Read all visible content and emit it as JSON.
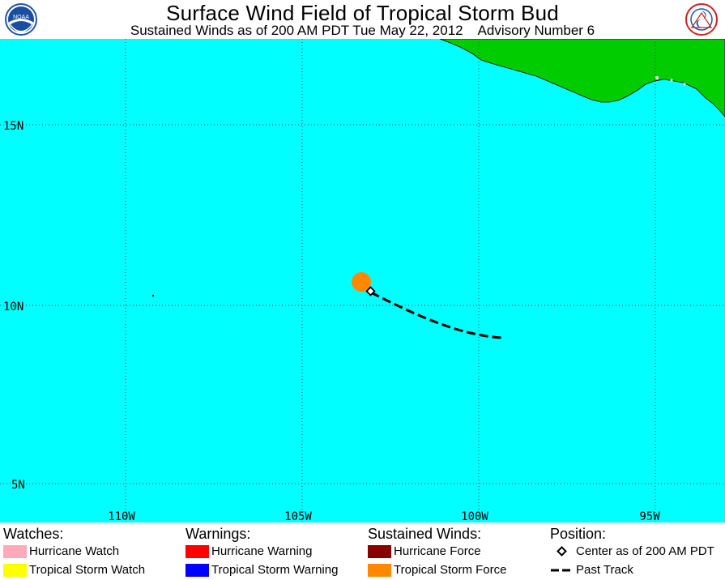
{
  "header": {
    "title": "Surface Wind Field of Tropical Storm Bud",
    "subtitle": "Sustained Winds as of 200 AM PDT Tue May 22, 2012    Advisory Number 6",
    "left_logo_text": "NOAA",
    "right_logo_text": "NATIONAL WEATHER SERVICE"
  },
  "map": {
    "ocean_color": "#00ffff",
    "land_color": "#00cc00",
    "grid_color": "#000000",
    "lat_labels": [
      "15N",
      "10N",
      "5N"
    ],
    "lon_labels": [
      "110W",
      "105W",
      "100W",
      "95W"
    ],
    "icons": [
      "storm-center-icon",
      "tropical-storm-force-area-icon",
      "past-track-icon"
    ]
  },
  "legend": {
    "watches": {
      "heading": "Watches:",
      "items": [
        {
          "label": "Hurricane Watch",
          "color": "#ffaabb"
        },
        {
          "label": "Tropical Storm Watch",
          "color": "#ffff00"
        }
      ]
    },
    "warnings": {
      "heading": "Warnings:",
      "items": [
        {
          "label": "Hurricane Warning",
          "color": "#ff0000"
        },
        {
          "label": "Tropical Storm Warning",
          "color": "#0000ff"
        }
      ]
    },
    "winds": {
      "heading": "Sustained Winds:",
      "items": [
        {
          "label": "Hurricane Force",
          "color": "#880000"
        },
        {
          "label": "Tropical Storm Force",
          "color": "#ff8800"
        }
      ]
    },
    "position": {
      "heading": "Position:",
      "items": [
        {
          "label": "Center as of 200 AM PDT",
          "icon": "diamond-icon"
        },
        {
          "label": "Past Track",
          "icon": "dashed-line-icon"
        }
      ]
    }
  }
}
